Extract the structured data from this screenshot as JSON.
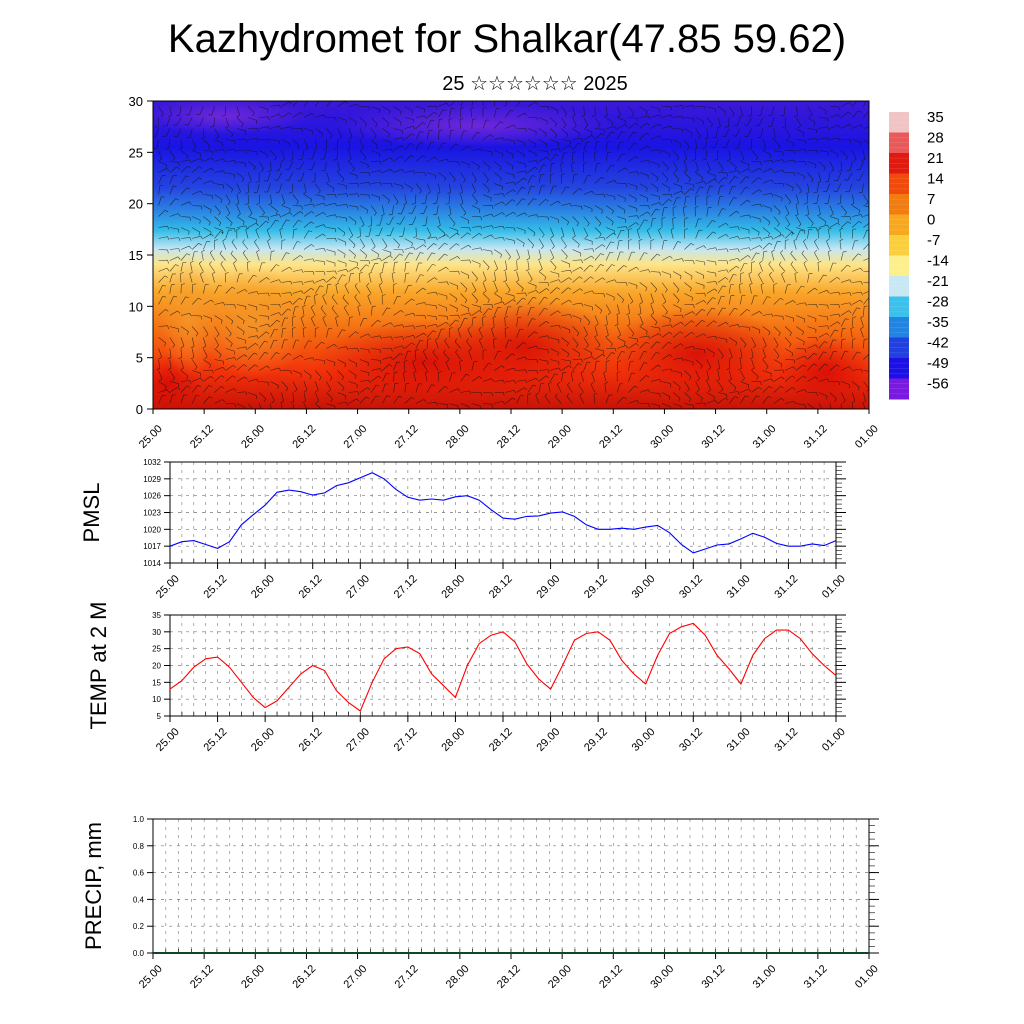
{
  "title": "Kazhydromet for Shalkar(47.85 59.62)",
  "subtitle": "25 ☆☆☆☆☆☆ 2025",
  "chart_data": [
    {
      "type": "heatmap",
      "name": "upper-air-section",
      "ylim": [
        0,
        30
      ],
      "yticks": [
        0,
        5,
        10,
        15,
        20,
        25,
        30
      ],
      "xticks": [
        "25.00",
        "25.12",
        "26.00",
        "26.12",
        "27.00",
        "27.12",
        "28.00",
        "28.12",
        "29.00",
        "29.12",
        "30.00",
        "30.12",
        "31.00",
        "31.12",
        "01.00"
      ],
      "overlay": "wind-barbs",
      "colorbar": {
        "labels": [
          "35",
          "28",
          "21",
          "14",
          "7",
          "0",
          "-7",
          "-14",
          "-21",
          "-28",
          "-35",
          "-42",
          "-49",
          "-56"
        ],
        "colors": [
          "#f0c4c4",
          "#e85a5a",
          "#e11a10",
          "#f24a0a",
          "#f27c10",
          "#f7a820",
          "#fbcf3c",
          "#fdf08c",
          "#c8e8f4",
          "#3cc0ec",
          "#2284e2",
          "#2040e0",
          "#1c10e4",
          "#7a1ae0"
        ]
      }
    },
    {
      "type": "line",
      "name": "pmsl",
      "ylabel": "PMSL",
      "ylim": [
        1014,
        1032
      ],
      "yticks": [
        1014,
        1017,
        1020,
        1023,
        1026,
        1029,
        1032
      ],
      "color": "#0000ff",
      "xticks": [
        "25.00",
        "25.12",
        "26.00",
        "26.12",
        "27.00",
        "27.12",
        "28.00",
        "28.12",
        "29.00",
        "29.12",
        "30.00",
        "30.12",
        "31.00",
        "31.12",
        "01.00"
      ],
      "values": [
        1017.0,
        1017.8,
        1018.0,
        1017.3,
        1016.6,
        1017.8,
        1020.8,
        1022.6,
        1024.3,
        1026.6,
        1027.0,
        1026.7,
        1026.1,
        1026.5,
        1027.8,
        1028.3,
        1029.2,
        1030.1,
        1029.0,
        1027.1,
        1025.7,
        1025.2,
        1025.4,
        1025.2,
        1025.8,
        1026.0,
        1025.2,
        1023.5,
        1022.0,
        1021.8,
        1022.3,
        1022.4,
        1022.9,
        1023.1,
        1022.3,
        1020.8,
        1020.0,
        1020.0,
        1020.2,
        1020.0,
        1020.4,
        1020.7,
        1019.4,
        1017.3,
        1015.8,
        1016.5,
        1017.2,
        1017.4,
        1018.3,
        1019.3,
        1018.6,
        1017.5,
        1017.0,
        1017.0,
        1017.4,
        1017.1,
        1018.0
      ]
    },
    {
      "type": "line",
      "name": "temp-2m",
      "ylabel": "TEMP at 2 M",
      "ylim": [
        5,
        35
      ],
      "yticks": [
        5,
        10,
        15,
        20,
        25,
        30,
        35
      ],
      "color": "#ff0000",
      "xticks": [
        "25.00",
        "25.12",
        "26.00",
        "26.12",
        "27.00",
        "27.12",
        "28.00",
        "28.12",
        "29.00",
        "29.12",
        "30.00",
        "30.12",
        "31.00",
        "31.12",
        "01.00"
      ],
      "values": [
        13.0,
        15.5,
        19.5,
        22.0,
        22.5,
        19.5,
        15.0,
        10.5,
        7.5,
        9.5,
        13.5,
        17.5,
        20.0,
        18.5,
        12.5,
        9.0,
        6.5,
        15.0,
        22.0,
        25.0,
        25.5,
        23.5,
        17.5,
        14.0,
        10.5,
        20.0,
        26.5,
        29.0,
        30.0,
        27.0,
        20.5,
        16.0,
        13.0,
        20.0,
        27.5,
        29.5,
        30.0,
        27.5,
        21.5,
        17.5,
        14.5,
        23.0,
        29.5,
        31.5,
        32.5,
        29.0,
        23.0,
        19.0,
        14.5,
        23.0,
        28.0,
        30.5,
        30.5,
        28.0,
        23.5,
        20.0,
        17.0
      ]
    },
    {
      "type": "line",
      "name": "precip",
      "ylabel": "PRECIP, mm",
      "ylim": [
        0,
        1
      ],
      "yticks": [
        "0.0",
        "0.2",
        "0.4",
        "0.6",
        "0.8",
        "1.0"
      ],
      "xticks": [
        "25.00",
        "25.12",
        "26.00",
        "26.12",
        "27.00",
        "27.12",
        "28.00",
        "28.12",
        "29.00",
        "29.12",
        "30.00",
        "30.12",
        "31.00",
        "31.12",
        "01.00"
      ],
      "values": [
        0,
        0,
        0,
        0,
        0,
        0,
        0,
        0,
        0,
        0,
        0,
        0,
        0,
        0,
        0,
        0,
        0,
        0,
        0,
        0,
        0,
        0,
        0,
        0,
        0,
        0,
        0,
        0,
        0,
        0,
        0,
        0,
        0,
        0,
        0,
        0,
        0,
        0,
        0,
        0,
        0,
        0,
        0,
        0,
        0,
        0,
        0,
        0,
        0,
        0,
        0,
        0,
        0,
        0,
        0,
        0,
        0
      ]
    }
  ]
}
